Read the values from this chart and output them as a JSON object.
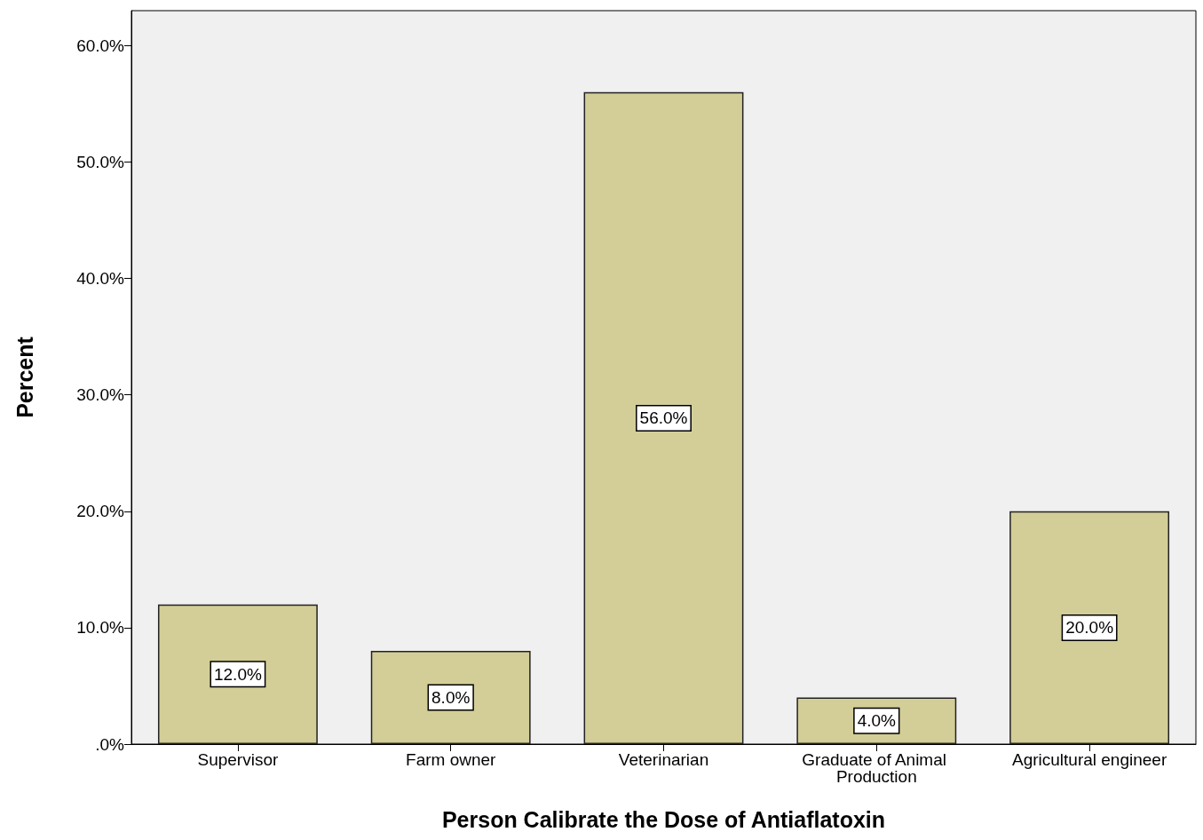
{
  "chart_data": {
    "type": "bar",
    "xlabel": "Person Calibrate the Dose of Antiaflatoxin",
    "ylabel": "Percent",
    "categories": [
      "Supervisor",
      "Farm owner",
      "Veterinarian",
      "Graduate of Animal Production",
      "Agricultural engineer"
    ],
    "values": [
      12,
      8,
      56,
      4,
      20
    ],
    "value_labels": [
      "12.0%",
      "8.0%",
      "56.0%",
      "4.0%",
      "20.0%"
    ],
    "color": "#d3ce97",
    "ylim": [
      0,
      63
    ],
    "yticks": [
      {
        "value": 0,
        "label": ".0%"
      },
      {
        "value": 10,
        "label": "10.0%"
      },
      {
        "value": 20,
        "label": "20.0%"
      },
      {
        "value": 30,
        "label": "30.0%"
      },
      {
        "value": 40,
        "label": "40.0%"
      },
      {
        "value": 50,
        "label": "50.0%"
      },
      {
        "value": 60,
        "label": "60.0%"
      }
    ],
    "grid": false
  }
}
